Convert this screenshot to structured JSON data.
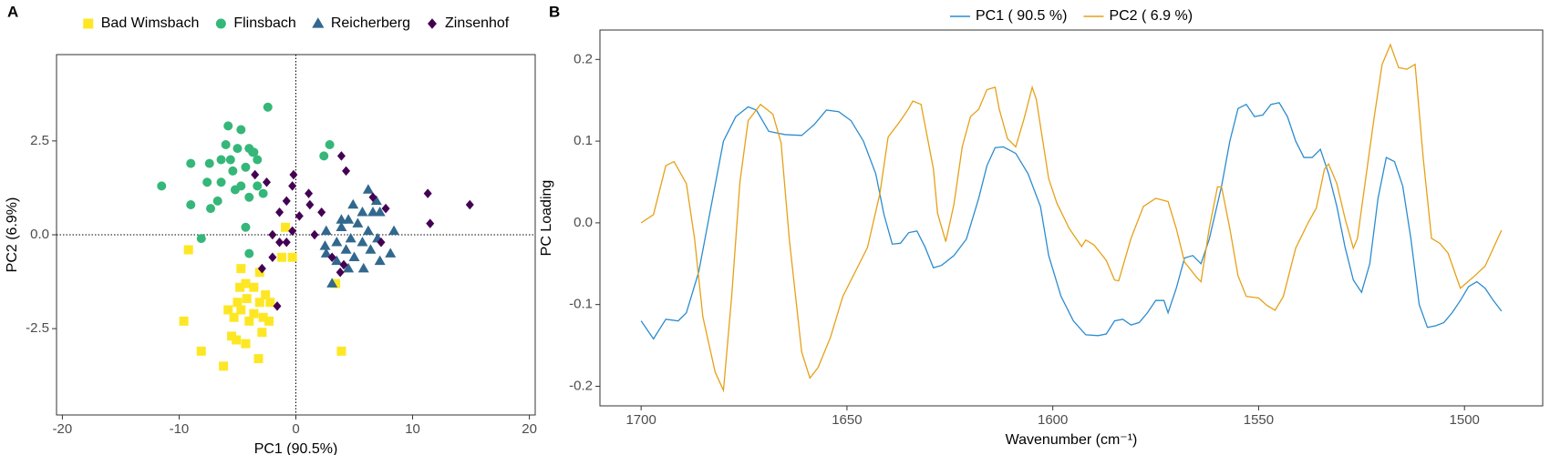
{
  "chart_data": [
    {
      "type": "scatter",
      "panel": "A",
      "xlabel": "PC1 (90.5%)",
      "ylabel": "PC2 (6.9%)",
      "xlim": [
        -20.5,
        20.5
      ],
      "ylim": [
        -4.8,
        4.8
      ],
      "xticks": [
        -20,
        -10,
        0,
        10,
        20
      ],
      "yticks": [
        -2.5,
        {
          "value": 0,
          "label": "0.0"
        },
        2.5
      ],
      "legend": "top",
      "series": [
        {
          "name": "Bad Wimsbach",
          "color": "#fde725",
          "marker": "square",
          "x": [
            -0.9,
            -9.2,
            -0.3,
            -1.2,
            -9.6,
            -8.1,
            -6.2,
            3.9,
            3.4,
            -3.2,
            -4.7,
            -3.1,
            -4.3,
            -4.8,
            -3.6,
            -2.6,
            -4.2,
            -5.0,
            -3.1,
            -2.2,
            -5.8,
            -4.7,
            -3.6,
            -2.8,
            -5.3,
            -4.0,
            -2.3,
            -5.5,
            -4.3,
            -5.1,
            -2.9
          ],
          "values": [
            0.2,
            -0.4,
            -0.6,
            -0.6,
            -2.3,
            -3.1,
            -3.5,
            -3.1,
            -1.3,
            -3.3,
            -0.9,
            -1.0,
            -1.3,
            -1.4,
            -1.4,
            -1.6,
            -1.7,
            -1.8,
            -1.8,
            -1.8,
            -2.0,
            -2.0,
            -2.1,
            -2.2,
            -2.2,
            -2.3,
            -2.3,
            -2.7,
            -2.9,
            -2.8,
            -2.6
          ]
        },
        {
          "name": "Flinsbach",
          "color": "#35b779",
          "marker": "circle",
          "x": [
            -11.5,
            -2.4,
            -5.8,
            -4.7,
            -9.0,
            -7.4,
            -9.0,
            -8.1,
            -7.3,
            -4.3,
            -4.0,
            2.9,
            2.4,
            -6.4,
            -5.0,
            -3.7,
            -3.3,
            -6.4,
            -4.7,
            -5.2,
            -4.0,
            -6.7,
            -7.6,
            -5.4,
            -4.3,
            -3.3,
            -6.0,
            -4.0,
            -2.8,
            -5.6,
            -3.6
          ],
          "values": [
            1.3,
            3.4,
            2.9,
            2.8,
            1.9,
            1.9,
            0.8,
            -0.1,
            0.7,
            0.2,
            -0.5,
            2.4,
            2.1,
            2.0,
            2.3,
            2.2,
            1.3,
            1.4,
            1.3,
            1.2,
            1.0,
            0.9,
            1.4,
            1.7,
            1.8,
            2.0,
            2.4,
            2.3,
            1.1,
            2.0,
            2.2
          ]
        },
        {
          "name": "Reicherberg",
          "color": "#31688e",
          "marker": "triangle",
          "x": [
            6.2,
            4.9,
            6.9,
            5.7,
            4.5,
            6.6,
            5.3,
            3.9,
            2.6,
            8.4,
            6.2,
            4.7,
            7.0,
            3.5,
            5.7,
            2.5,
            4.3,
            6.4,
            8.1,
            5.0,
            3.5,
            2.6,
            7.2,
            4.5,
            5.8,
            3.1,
            7.2,
            3.9
          ],
          "values": [
            1.2,
            0.8,
            0.9,
            0.6,
            0.4,
            0.6,
            0.3,
            0.2,
            0.1,
            0.1,
            0.1,
            -0.1,
            -0.1,
            -0.2,
            -0.2,
            -0.3,
            -0.4,
            -0.4,
            -0.5,
            -0.6,
            -0.7,
            -0.5,
            -0.7,
            -0.9,
            -0.9,
            -1.3,
            0.6,
            0.4
          ]
        },
        {
          "name": "Zinsenhof",
          "color": "#440154",
          "marker": "diamond",
          "x": [
            3.9,
            4.3,
            -0.2,
            -3.5,
            -2.5,
            -0.3,
            11.3,
            14.9,
            -0.8,
            1.2,
            2.2,
            -1.4,
            0.3,
            11.5,
            -0.3,
            -2.0,
            1.6,
            -1.4,
            -0.8,
            6.6,
            7.7,
            7.3,
            3.1,
            4.1,
            -2.0,
            -2.9,
            -1.6,
            3.8,
            1.1
          ],
          "values": [
            2.1,
            1.7,
            1.6,
            1.6,
            1.4,
            1.3,
            1.1,
            0.8,
            0.9,
            0.8,
            0.6,
            0.6,
            0.5,
            0.3,
            0.1,
            0.0,
            0.0,
            -0.2,
            -0.2,
            1.0,
            0.7,
            -0.2,
            -0.6,
            -0.8,
            -0.6,
            -0.9,
            -1.9,
            -1.0,
            1.1
          ]
        }
      ]
    },
    {
      "type": "line",
      "panel": "B",
      "xlabel": "Wavenumber (cm⁻¹)",
      "ylabel": "PC Loading",
      "xlim": [
        1710,
        1481
      ],
      "ylim": [
        -0.224,
        0.236
      ],
      "xticks": [
        1700,
        1650,
        1600,
        1550,
        1500
      ],
      "yticks": [
        -0.2,
        -0.1,
        {
          "value": 0,
          "label": "0.0"
        },
        0.1,
        0.2
      ],
      "legend": "top",
      "series": [
        {
          "name": "PC1 ( 90.5 %)",
          "color": "#2b8ccf",
          "x": [
            1700,
            1697,
            1694,
            1691,
            1689,
            1686,
            1683,
            1680,
            1677,
            1674,
            1672,
            1669,
            1665,
            1661,
            1658,
            1655,
            1652,
            1649,
            1646,
            1643,
            1641,
            1639,
            1637,
            1635,
            1633,
            1631,
            1629,
            1627,
            1624,
            1621,
            1618,
            1616,
            1614,
            1612,
            1609,
            1606,
            1603,
            1601,
            1598,
            1595,
            1592,
            1589,
            1587,
            1585,
            1583,
            1581,
            1579,
            1577,
            1575,
            1573,
            1572,
            1570,
            1568,
            1566,
            1564,
            1562,
            1559,
            1557,
            1555,
            1553,
            1551,
            1549,
            1547,
            1545,
            1543,
            1541,
            1539,
            1537,
            1535,
            1533,
            1531,
            1529,
            1527,
            1525,
            1523,
            1521,
            1519,
            1517,
            1515,
            1513,
            1511,
            1509,
            1507,
            1505,
            1503,
            1501,
            1499,
            1497,
            1495,
            1493,
            1491
          ],
          "values": [
            -0.12,
            -0.142,
            -0.118,
            -0.12,
            -0.11,
            -0.06,
            0.02,
            0.1,
            0.13,
            0.142,
            0.138,
            0.112,
            0.108,
            0.107,
            0.12,
            0.138,
            0.136,
            0.125,
            0.1,
            0.06,
            0.01,
            -0.026,
            -0.025,
            -0.012,
            -0.01,
            -0.03,
            -0.055,
            -0.052,
            -0.04,
            -0.02,
            0.03,
            0.07,
            0.092,
            0.093,
            0.085,
            0.06,
            0.02,
            -0.04,
            -0.09,
            -0.12,
            -0.137,
            -0.138,
            -0.136,
            -0.12,
            -0.118,
            -0.125,
            -0.122,
            -0.11,
            -0.095,
            -0.095,
            -0.11,
            -0.08,
            -0.043,
            -0.04,
            -0.05,
            -0.02,
            0.045,
            0.1,
            0.14,
            0.145,
            0.13,
            0.132,
            0.145,
            0.147,
            0.13,
            0.1,
            0.08,
            0.08,
            0.09,
            0.06,
            0.02,
            -0.03,
            -0.07,
            -0.085,
            -0.05,
            0.03,
            0.08,
            0.075,
            0.045,
            -0.02,
            -0.1,
            -0.128,
            -0.126,
            -0.122,
            -0.11,
            -0.095,
            -0.078,
            -0.072,
            -0.08,
            -0.095,
            -0.108
          ]
        },
        {
          "name": "PC2 ( 6.9 %)",
          "color": "#e6a117",
          "x": [
            1700,
            1697,
            1694,
            1692,
            1689,
            1687,
            1685,
            1682,
            1680,
            1678,
            1676,
            1674,
            1671,
            1668,
            1666,
            1664,
            1661,
            1659,
            1657,
            1654,
            1651,
            1648,
            1645,
            1642,
            1640,
            1637,
            1635,
            1634,
            1632,
            1629,
            1628,
            1626,
            1624,
            1622,
            1620,
            1618,
            1616,
            1614,
            1613,
            1611,
            1609,
            1607,
            1605,
            1604,
            1601,
            1599,
            1596,
            1593,
            1592,
            1590,
            1587,
            1585,
            1584,
            1581,
            1578,
            1575,
            1572,
            1570,
            1568,
            1565,
            1564,
            1562,
            1560,
            1559,
            1557,
            1555,
            1553,
            1550,
            1548,
            1546,
            1544,
            1541,
            1538,
            1536,
            1534,
            1533,
            1531,
            1529,
            1527,
            1526,
            1524,
            1522,
            1520,
            1518,
            1516,
            1514,
            1512,
            1510,
            1508,
            1506,
            1504,
            1501,
            1498,
            1495,
            1493,
            1491
          ],
          "values": [
            0.0,
            0.01,
            0.07,
            0.075,
            0.048,
            -0.02,
            -0.115,
            -0.183,
            -0.205,
            -0.09,
            0.05,
            0.125,
            0.145,
            0.133,
            0.098,
            -0.02,
            -0.158,
            -0.19,
            -0.177,
            -0.14,
            -0.09,
            -0.06,
            -0.03,
            0.036,
            0.105,
            0.125,
            0.14,
            0.149,
            0.145,
            0.066,
            0.012,
            -0.023,
            0.023,
            0.093,
            0.13,
            0.139,
            0.163,
            0.166,
            0.139,
            0.103,
            0.093,
            0.127,
            0.166,
            0.151,
            0.054,
            0.024,
            -0.007,
            -0.029,
            -0.021,
            -0.027,
            -0.046,
            -0.07,
            -0.071,
            -0.019,
            0.02,
            0.03,
            0.026,
            -0.007,
            -0.048,
            -0.067,
            -0.072,
            -0.007,
            0.044,
            0.044,
            -0.007,
            -0.065,
            -0.09,
            -0.092,
            -0.101,
            -0.107,
            -0.09,
            -0.031,
            0.0,
            0.018,
            0.066,
            0.072,
            0.048,
            0.005,
            -0.031,
            -0.019,
            0.054,
            0.127,
            0.194,
            0.218,
            0.19,
            0.188,
            0.194,
            0.078,
            -0.019,
            -0.025,
            -0.037,
            -0.08,
            -0.067,
            -0.053,
            -0.031,
            -0.009
          ]
        }
      ]
    }
  ]
}
